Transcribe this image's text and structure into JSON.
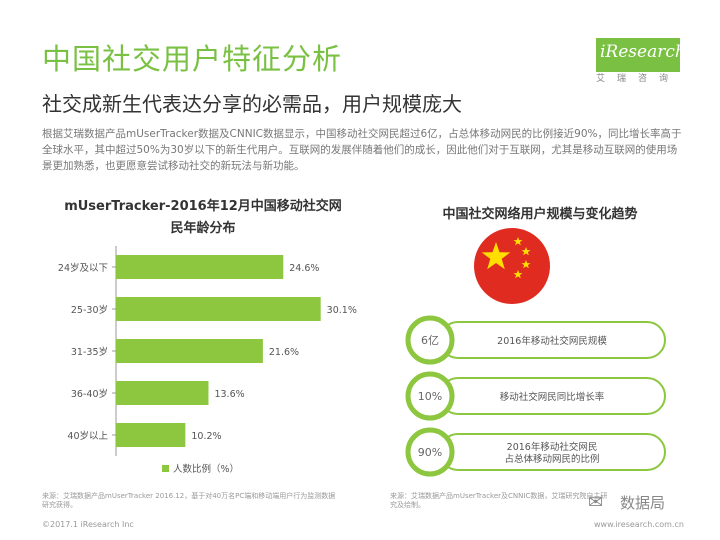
{
  "header": {
    "title": "中国社交用户特征分析",
    "subtitle": "社交成新生代表达分享的必需品，用户规模庞大",
    "logo_text": "iResearch",
    "logo_sub": "艾瑞咨询"
  },
  "description": "根据艾瑞数据产品mUserTracker数据及CNNIC数据显示，中国移动社交网民超过6亿，占总体移动网民的比例接近90%，同比增长率高于全球水平，其中超过50%为30岁以下的新生代用户。互联网的发展伴随着他们的成长，因此他们对于互联网，尤其是移动互联网的使用场景更加熟悉，也更愿意尝试移动社交的新玩法与新功能。",
  "chart_data": {
    "type": "bar",
    "orientation": "horizontal",
    "title": "mUserTracker-2016年12月中国移动社交网民年龄分布",
    "categories": [
      "24岁及以下",
      "25-30岁",
      "31-35岁",
      "36-40岁",
      "40岁以上"
    ],
    "series": [
      {
        "name": "人数比例（%）",
        "values": [
          24.6,
          30.1,
          21.6,
          13.6,
          10.2
        ]
      }
    ],
    "data_labels": [
      "24.6%",
      "30.1%",
      "21.6%",
      "13.6%",
      "10.2%"
    ],
    "legend_position": "bottom",
    "grid": false,
    "color": "#8dc63f"
  },
  "right_panel": {
    "title": "中国社交网络用户规模与变化趋势",
    "flag_icon": "china-flag-icon",
    "items": [
      {
        "value": "6亿",
        "label": "2016年移动社交网民规模"
      },
      {
        "value": "10%",
        "label": "移动社交网民同比增长率"
      },
      {
        "value": "90%",
        "label": "2016年移动社交网民\n占总体移动网民的比例"
      }
    ]
  },
  "source_left": "来源：艾瑞数据产品mUserTracker 2016.12，基于对40万名PC端和移动端用户行为监测数据研究获得。",
  "source_right": "来源：艾瑞数据产品mUserTracker及CNNIC数据，艾瑞研究院自主研究及绘制。",
  "footer": "©2017.1 iResearch Inc",
  "footer_url": "www.iresearch.com.cn",
  "watermark": "数据局"
}
